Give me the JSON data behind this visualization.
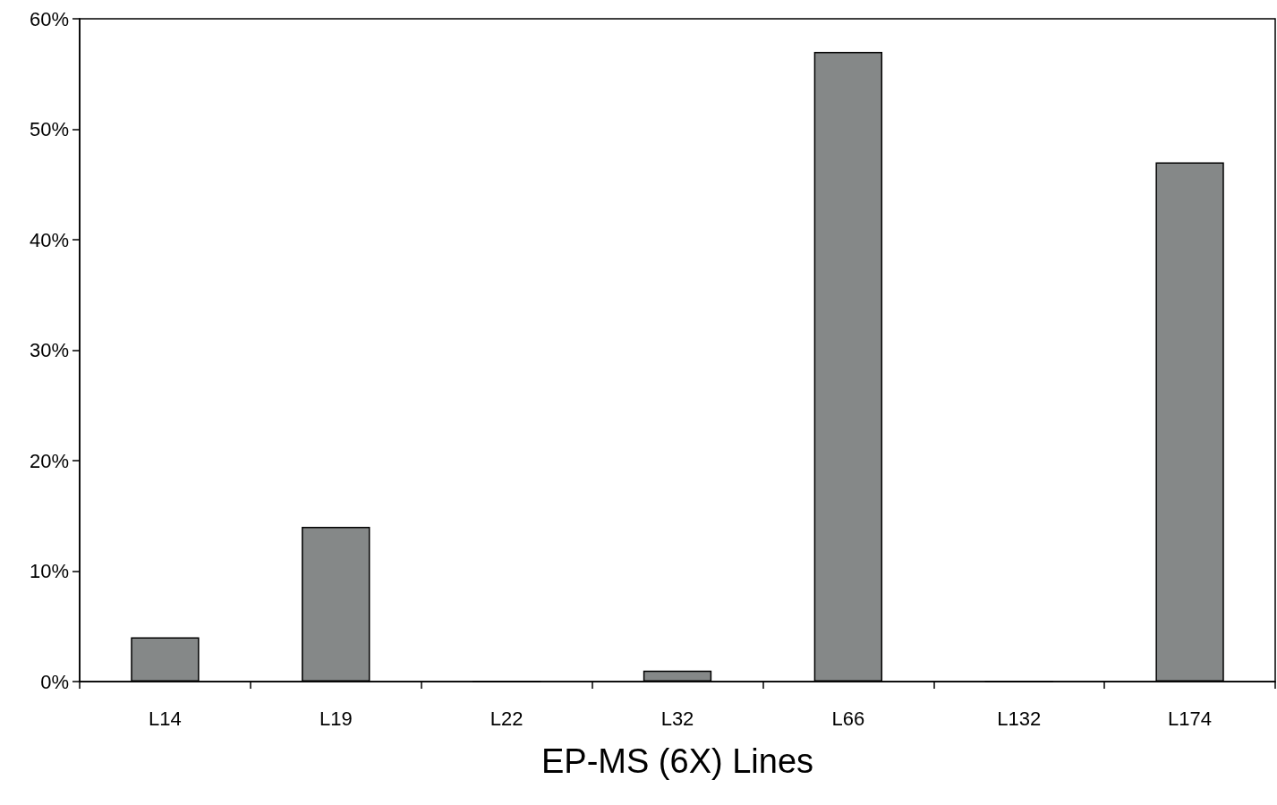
{
  "chart_data": {
    "type": "bar",
    "xlabel": "EP-MS (6X) Lines",
    "categories": [
      "L14",
      "L19",
      "L22",
      "L32",
      "L66",
      "L132",
      "L174"
    ],
    "values": [
      4,
      14,
      0,
      1,
      57,
      0,
      47
    ],
    "color": "#858888",
    "ylim": [
      0,
      60
    ],
    "yticks": [
      {
        "value": 0,
        "label": "0%"
      },
      {
        "value": 10,
        "label": "10%"
      },
      {
        "value": 20,
        "label": "20%"
      },
      {
        "value": 30,
        "label": "30%"
      },
      {
        "value": 40,
        "label": "40%"
      },
      {
        "value": 50,
        "label": "50%"
      },
      {
        "value": 60,
        "label": "60%"
      }
    ],
    "grid": false
  }
}
